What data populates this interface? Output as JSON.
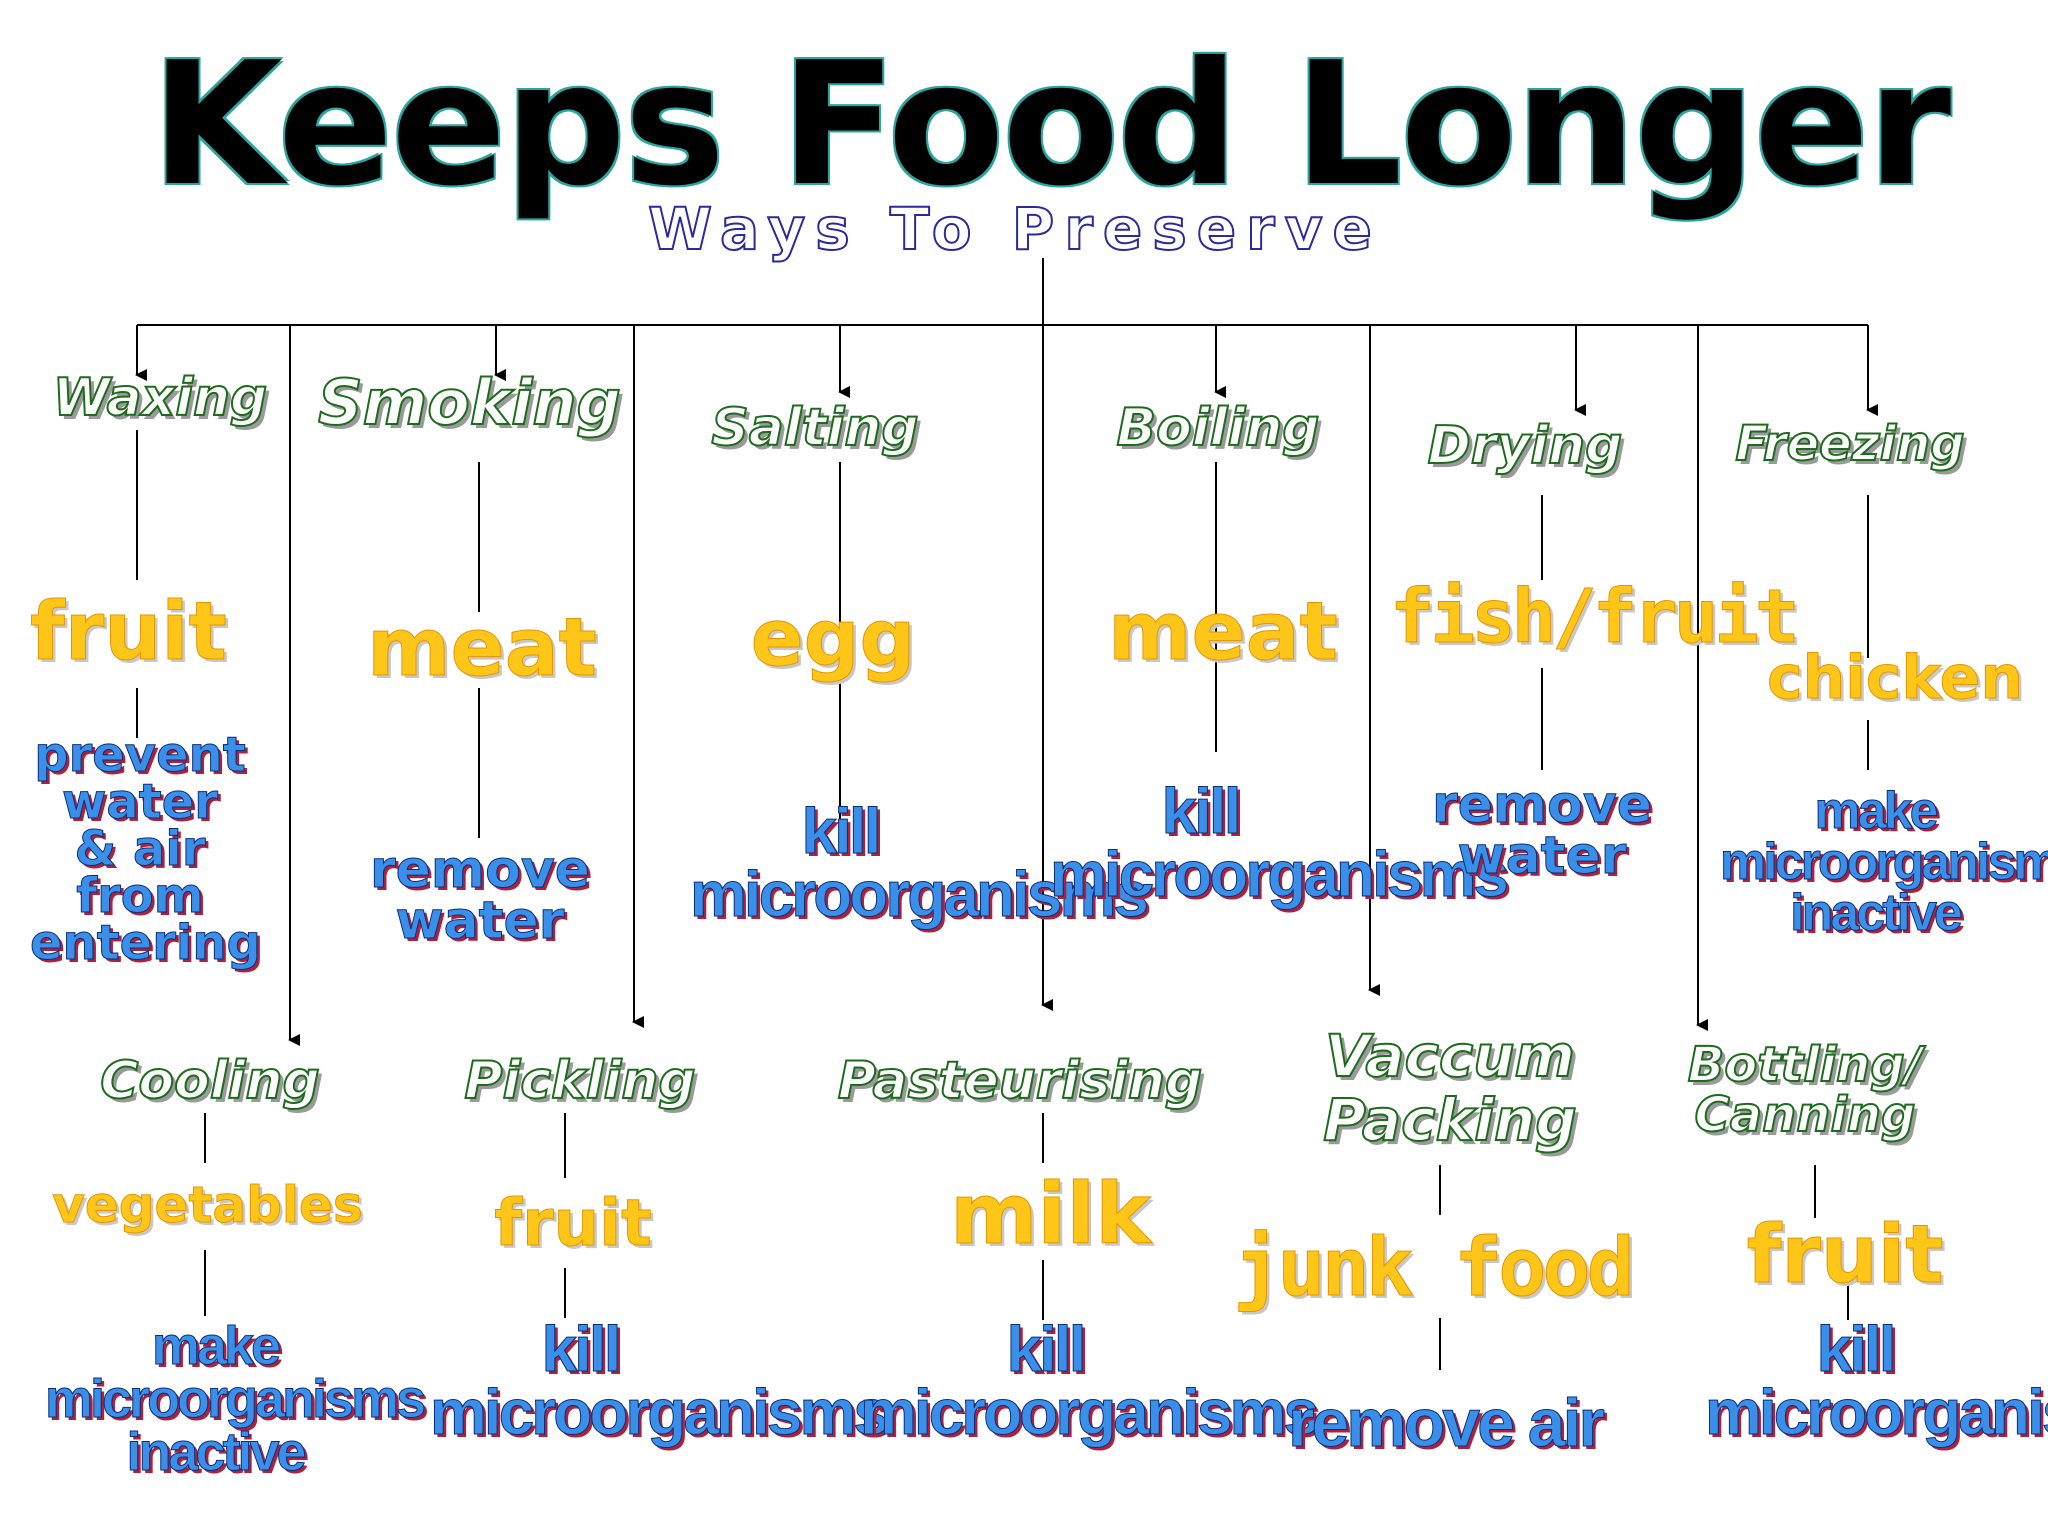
{
  "title": "Keeps Food Longer",
  "subtitle": "Ways To Preserve",
  "colors": {
    "title_fill": "#000000",
    "title_outline": "#2aa6a0",
    "subtitle_outline": "#2a2a9a",
    "method_outline": "#1e6b1e",
    "food_fill": "#ffc61a",
    "effect_fill": "#3a8fe8",
    "effect_shadow": "#b0203a"
  },
  "methods": [
    {
      "name": "Waxing",
      "food": "fruit",
      "effect": [
        "prevent",
        "water",
        "& air",
        "from",
        "entering"
      ]
    },
    {
      "name": "Smoking",
      "food": "meat",
      "effect": [
        "remove",
        "water"
      ]
    },
    {
      "name": "Salting",
      "food": "egg",
      "effect": [
        "kill",
        "microorganisms"
      ]
    },
    {
      "name": "Boiling",
      "food": "meat",
      "effect": [
        "kill",
        "microorganisms"
      ]
    },
    {
      "name": "Drying",
      "food": "fish/fruit",
      "effect": [
        "remove",
        "water"
      ]
    },
    {
      "name": "Freezing",
      "food": "chicken",
      "effect": [
        "make",
        "microorganisms",
        "inactive"
      ]
    },
    {
      "name": "Cooling",
      "food": "vegetables",
      "effect": [
        "make",
        "microorganisms",
        "inactive"
      ]
    },
    {
      "name": "Pickling",
      "food": "fruit",
      "effect": [
        "kill",
        "microorganisms"
      ]
    },
    {
      "name": "Pasteurising",
      "food": "milk",
      "effect": [
        "kill",
        "microorganisms"
      ]
    },
    {
      "name": [
        "Vaccum",
        "Packing"
      ],
      "food": "junk food",
      "effect": [
        "remove air"
      ]
    },
    {
      "name": [
        "Bottling/",
        "Canning"
      ],
      "food": "fruit",
      "effect": [
        "kill",
        "microorganisms"
      ]
    }
  ]
}
